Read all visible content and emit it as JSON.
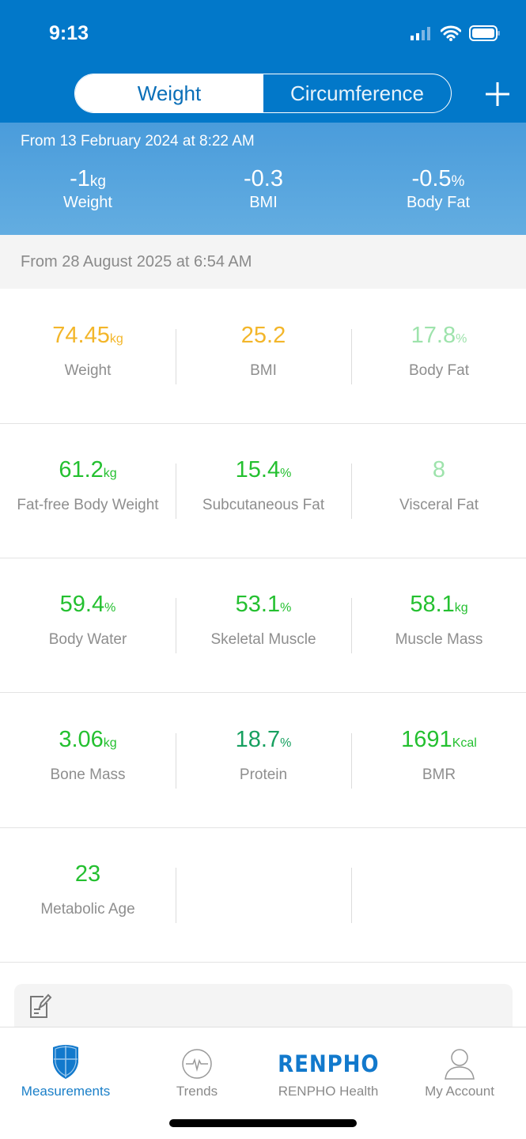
{
  "status_bar": {
    "time": "9:13"
  },
  "segments": {
    "weight": "Weight",
    "circumference": "Circumference",
    "active": "Weight"
  },
  "summary": {
    "from": "From 13 February 2024 at 8:22 AM",
    "items": [
      {
        "value": "-1",
        "unit": "kg",
        "label": "Weight"
      },
      {
        "value": "-0.3",
        "unit": "",
        "label": "BMI"
      },
      {
        "value": "-0.5",
        "unit": "%",
        "label": "Body Fat"
      }
    ]
  },
  "latest": {
    "from": "From 28 August 2025 at 6:54 AM"
  },
  "colors": {
    "orange": "#f3b62a",
    "light_green": "#9ee3ac",
    "green": "#24c030",
    "teal_green": "#17a060",
    "brand_blue": "#0278c9"
  },
  "metrics": [
    {
      "value": "74.45",
      "unit": "kg",
      "label": "Weight",
      "color": "#f3b62a"
    },
    {
      "value": "25.2",
      "unit": "",
      "label": "BMI",
      "color": "#f3b62a"
    },
    {
      "value": "17.8",
      "unit": "%",
      "label": "Body Fat",
      "color": "#9ee3ac"
    },
    {
      "value": "61.2",
      "unit": "kg",
      "label": "Fat-free Body Weight",
      "color": "#24c030"
    },
    {
      "value": "15.4",
      "unit": "%",
      "label": "Subcutaneous Fat",
      "color": "#24c030"
    },
    {
      "value": "8",
      "unit": "",
      "label": "Visceral Fat",
      "color": "#9ee3ac"
    },
    {
      "value": "59.4",
      "unit": "%",
      "label": "Body Water",
      "color": "#24c030"
    },
    {
      "value": "53.1",
      "unit": "%",
      "label": "Skeletal Muscle",
      "color": "#24c030"
    },
    {
      "value": "58.1",
      "unit": "kg",
      "label": "Muscle Mass",
      "color": "#24c030"
    },
    {
      "value": "3.06",
      "unit": "kg",
      "label": "Bone Mass",
      "color": "#24c030"
    },
    {
      "value": "18.7",
      "unit": "%",
      "label": "Protein",
      "color": "#17a060"
    },
    {
      "value": "1691",
      "unit": "Kcal",
      "label": "BMR",
      "color": "#24c030"
    },
    {
      "value": "23",
      "unit": "",
      "label": "Metabolic Age",
      "color": "#24c030"
    }
  ],
  "tabs": [
    {
      "label": "Measurements",
      "icon": "shield-icon",
      "active": true
    },
    {
      "label": "Trends",
      "icon": "pulse-icon",
      "active": false
    },
    {
      "label": "RENPHO Health",
      "icon": "renpho-logo",
      "logo_text": "RENPHO",
      "active": false
    },
    {
      "label": "My Account",
      "icon": "user-icon",
      "active": false
    }
  ]
}
